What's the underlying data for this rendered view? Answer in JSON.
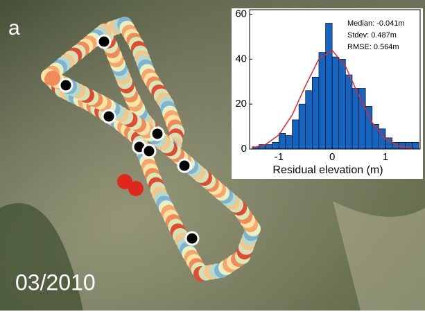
{
  "panel_label": "a",
  "date_label": "03/2010",
  "chart_data": {
    "type": "histogram",
    "xlabel": "Residual elevation (m)",
    "bins": [
      -1.5,
      -1.375,
      -1.25,
      -1.125,
      -1.0,
      -0.875,
      -0.75,
      -0.625,
      -0.5,
      -0.375,
      -0.25,
      -0.125,
      0,
      0.125,
      0.25,
      0.375,
      0.5,
      0.625,
      0.75,
      0.875,
      1.0,
      1.125,
      1.25,
      1.375,
      1.5,
      1.625
    ],
    "values": [
      1,
      2,
      2,
      3,
      7,
      6,
      13,
      20,
      26,
      32,
      43,
      56,
      41,
      40,
      33,
      27,
      27,
      19,
      11,
      9,
      5,
      3,
      3,
      3,
      3
    ],
    "color": "#1565c0",
    "fit_curve": {
      "color": "#e8242a",
      "x": [
        -1.5,
        -1.25,
        -1.0,
        -0.75,
        -0.5,
        -0.25,
        0,
        0.25,
        0.5,
        0.75,
        1.0,
        1.25,
        1.5
      ],
      "values": [
        0.5,
        2.0,
        6.3,
        15.2,
        28.2,
        40.1,
        43.9,
        36.8,
        23.7,
        11.8,
        4.5,
        1.3,
        0.3
      ]
    },
    "annotations": [
      "Median: -0.041m",
      "Stdev: 0.487m",
      "RMSE: 0.564m"
    ],
    "xlim": [
      -1.55,
      1.65
    ],
    "ylim": [
      0,
      62
    ],
    "xticks": [
      -1,
      0,
      1
    ],
    "yticks": [
      0,
      20,
      40,
      60
    ]
  }
}
